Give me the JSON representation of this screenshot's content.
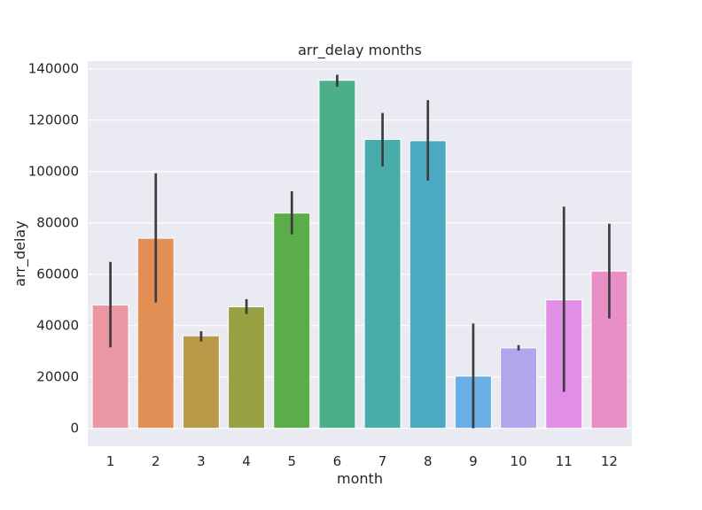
{
  "chart_data": {
    "type": "bar",
    "title": "arr_delay months",
    "xlabel": "month",
    "ylabel": "arr_delay",
    "categories": [
      "1",
      "2",
      "3",
      "4",
      "5",
      "6",
      "7",
      "8",
      "9",
      "10",
      "11",
      "12"
    ],
    "values": [
      48000,
      74000,
      36000,
      47300,
      83800,
      135500,
      112500,
      112000,
      20300,
      31300,
      50000,
      61200
    ],
    "error_low": [
      31500,
      49000,
      33800,
      44500,
      75500,
      133000,
      102000,
      96500,
      0,
      30300,
      14200,
      42800
    ],
    "error_high": [
      64800,
      99300,
      37800,
      50300,
      92300,
      137700,
      122800,
      127800,
      40800,
      32400,
      86300,
      79700
    ],
    "ylim": [
      -7000,
      143000
    ],
    "yticks": [
      0,
      20000,
      40000,
      60000,
      80000,
      100000,
      120000,
      140000
    ],
    "grid": true,
    "colors": [
      "#ea96a3",
      "#e18f54",
      "#b99b47",
      "#98a245",
      "#5aad48",
      "#4bb08a",
      "#48acab",
      "#4ba9c1",
      "#6aaee6",
      "#b3a6ec",
      "#e18ee6",
      "#e890c5"
    ],
    "background": "#eaeaf2",
    "error_color": "#3d3d3d"
  }
}
